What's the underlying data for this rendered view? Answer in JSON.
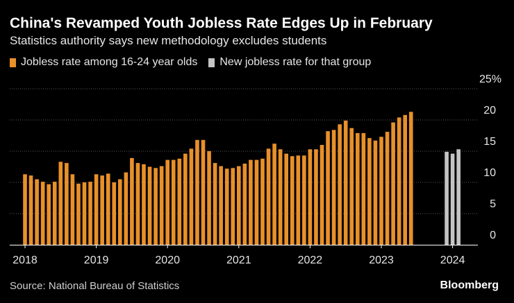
{
  "header": {
    "title": "China's Revamped Youth Jobless Rate Edges Up in February",
    "subtitle": "Statistics authority says new methodology excludes students"
  },
  "legend": {
    "old_label": "Jobless rate among 16-24 year olds",
    "new_label": "New jobless rate for that group"
  },
  "footer": {
    "source": "Source: National Bureau of Statistics",
    "brand": "Bloomberg"
  },
  "colors": {
    "old_series": "#e8902a",
    "new_series": "#c4c4c4",
    "grid": "#5a5a5a",
    "axis_text": "#e6e6e6"
  },
  "chart_data": {
    "type": "bar",
    "title": "China's Revamped Youth Jobless Rate Edges Up in February",
    "subtitle": "Statistics authority says new methodology excludes students",
    "xlabel": "",
    "ylabel": "",
    "ylim": [
      0,
      25
    ],
    "y_ticks": [
      0,
      5,
      10,
      15,
      20
    ],
    "y_top_label": "25%",
    "x_tick_labels": [
      "2018",
      "2019",
      "2020",
      "2021",
      "2022",
      "2023",
      "2024"
    ],
    "x_tick_dates": [
      "2018-01",
      "2019-01",
      "2020-01",
      "2021-01",
      "2022-01",
      "2023-01",
      "2024-01"
    ],
    "grid": true,
    "legend_position": "top-left",
    "series": [
      {
        "name": "Jobless rate among 16-24 year olds",
        "start": "2018-01",
        "dates": [
          "2018-01",
          "2018-02",
          "2018-03",
          "2018-04",
          "2018-05",
          "2018-06",
          "2018-07",
          "2018-08",
          "2018-09",
          "2018-10",
          "2018-11",
          "2018-12",
          "2019-01",
          "2019-02",
          "2019-03",
          "2019-04",
          "2019-05",
          "2019-06",
          "2019-07",
          "2019-08",
          "2019-09",
          "2019-10",
          "2019-11",
          "2019-12",
          "2020-01",
          "2020-02",
          "2020-03",
          "2020-04",
          "2020-05",
          "2020-06",
          "2020-07",
          "2020-08",
          "2020-09",
          "2020-10",
          "2020-11",
          "2020-12",
          "2021-01",
          "2021-02",
          "2021-03",
          "2021-04",
          "2021-05",
          "2021-06",
          "2021-07",
          "2021-08",
          "2021-09",
          "2021-10",
          "2021-11",
          "2021-12",
          "2022-01",
          "2022-02",
          "2022-03",
          "2022-04",
          "2022-05",
          "2022-06",
          "2022-07",
          "2022-08",
          "2022-09",
          "2022-10",
          "2022-11",
          "2022-12",
          "2023-01",
          "2023-02",
          "2023-03",
          "2023-04",
          "2023-05",
          "2023-06"
        ],
        "values": [
          11.3,
          11.1,
          10.5,
          10.1,
          9.7,
          10.1,
          13.3,
          13.1,
          11.3,
          9.8,
          10.0,
          10.1,
          11.3,
          11.1,
          11.4,
          10.0,
          10.5,
          11.6,
          13.9,
          13.1,
          12.9,
          12.5,
          12.3,
          12.6,
          13.6,
          13.6,
          13.8,
          14.6,
          15.4,
          16.8,
          16.8,
          15.0,
          13.1,
          12.6,
          12.2,
          12.3,
          12.6,
          13.0,
          13.6,
          13.6,
          13.8,
          15.4,
          16.2,
          15.3,
          14.6,
          14.2,
          14.3,
          14.3,
          15.3,
          15.3,
          16.0,
          18.2,
          18.4,
          19.3,
          19.9,
          18.7,
          17.9,
          17.9,
          17.1,
          16.7,
          17.3,
          18.1,
          19.6,
          20.4,
          20.8,
          21.3
        ]
      },
      {
        "name": "New jobless rate for that group",
        "dates": [
          "2023-12",
          "2024-01",
          "2024-02"
        ],
        "values": [
          14.9,
          14.6,
          15.3
        ]
      }
    ]
  }
}
